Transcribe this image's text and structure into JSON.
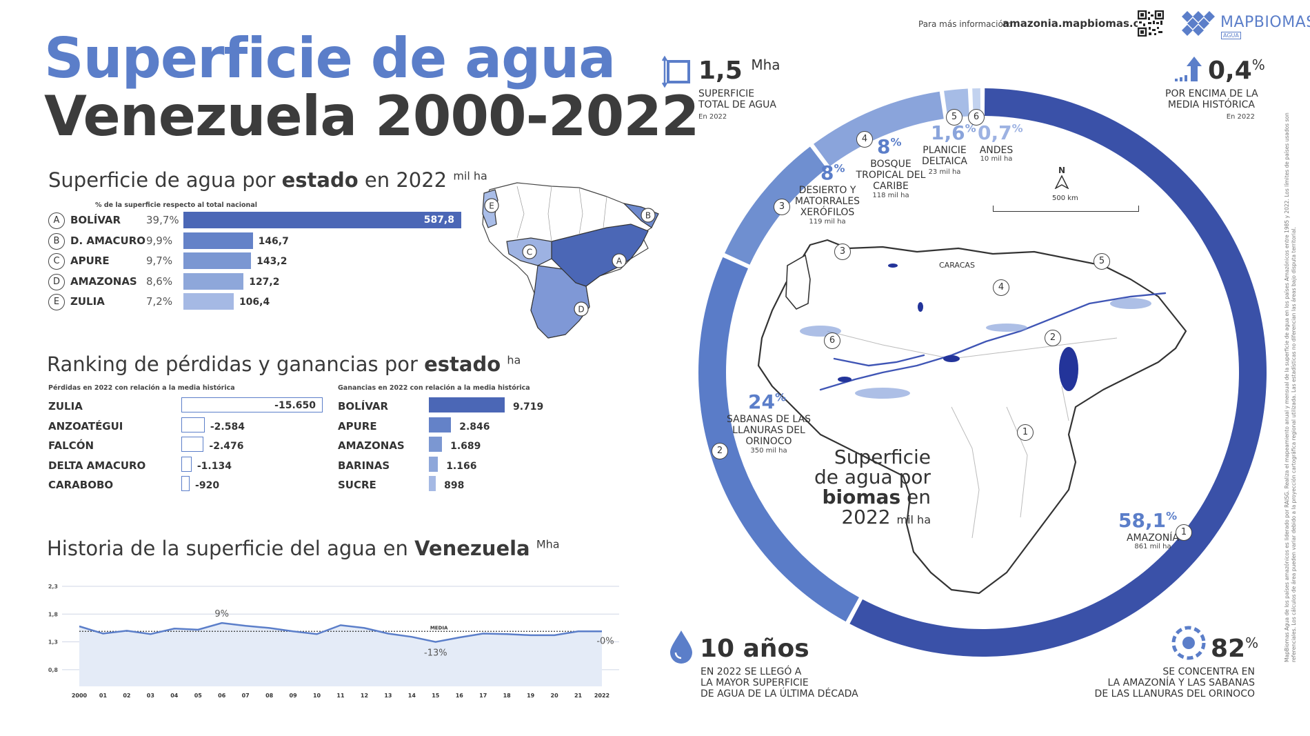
{
  "header": {
    "info_label": "Para más información:",
    "info_url": "amazonia.mapbiomas.org",
    "brand": "MAPBIOMAS",
    "brand_sub": "AGUA"
  },
  "title": {
    "line1": "Superficie de agua",
    "line2": "Venezuela 2000-2022"
  },
  "states": {
    "title_pre": "Superficie de agua por ",
    "title_bold": "estado",
    "title_post": " en 2022",
    "unit": "mil ha",
    "subtitle": "% de la superficie respecto al total nacional",
    "rows": [
      {
        "letter": "A",
        "name": "BOLÍVAR",
        "pct": "39,7%",
        "value": "587,8"
      },
      {
        "letter": "B",
        "name": "D. AMACURO",
        "pct": "9,9%",
        "value": "146,7"
      },
      {
        "letter": "C",
        "name": "APURE",
        "pct": "9,7%",
        "value": "143,2"
      },
      {
        "letter": "D",
        "name": "AMAZONAS",
        "pct": "8,6%",
        "value": "127,2"
      },
      {
        "letter": "E",
        "name": "ZULIA",
        "pct": "7,2%",
        "value": "106,4"
      }
    ]
  },
  "ranking": {
    "title_pre": "Ranking de pérdidas y ganancias por ",
    "title_bold": "estado",
    "unit": "ha",
    "loss_caption": "Pérdidas en 2022 con relación a la media histórica",
    "gain_caption": "Ganancias en 2022 con relación a la media histórica",
    "losses": [
      {
        "name": "ZULIA",
        "value": "-15.650"
      },
      {
        "name": "ANZOATÉGUI",
        "value": "-2.584"
      },
      {
        "name": "FALCÓN",
        "value": "-2.476"
      },
      {
        "name": "DELTA AMACURO",
        "value": "-1.134"
      },
      {
        "name": "CARABOBO",
        "value": "-920"
      }
    ],
    "gains": [
      {
        "name": "BOLÍVAR",
        "value": "9.719"
      },
      {
        "name": "APURE",
        "value": "2.846"
      },
      {
        "name": "AMAZONAS",
        "value": "1.689"
      },
      {
        "name": "BARINAS",
        "value": "1.166"
      },
      {
        "name": "SUCRE",
        "value": "898"
      }
    ]
  },
  "history": {
    "title_pre": "Historia de la superficie del agua en ",
    "title_bold": "Venezuela",
    "unit": "Mha",
    "media_label": "MEDIA",
    "annot_max": "9%",
    "annot_min": "-13%",
    "annot_last": "-0%"
  },
  "chart_data": [
    {
      "type": "bar",
      "title": "Superficie de agua por estado en 2022",
      "unit": "mil ha",
      "categories": [
        "BOLÍVAR",
        "D. AMACURO",
        "APURE",
        "AMAZONAS",
        "ZULIA"
      ],
      "values": [
        587.8,
        146.7,
        143.2,
        127.2,
        106.4
      ],
      "percent": [
        39.7,
        9.9,
        9.7,
        8.6,
        7.2
      ]
    },
    {
      "type": "bar",
      "title": "Ranking de pérdidas y ganancias por estado",
      "unit": "ha",
      "series": [
        {
          "name": "Pérdidas",
          "categories": [
            "ZULIA",
            "ANZOATÉGUI",
            "FALCÓN",
            "DELTA AMACURO",
            "CARABOBO"
          ],
          "values": [
            -15650,
            -2584,
            -2476,
            -1134,
            -920
          ]
        },
        {
          "name": "Ganancias",
          "categories": [
            "BOLÍVAR",
            "APURE",
            "AMAZONAS",
            "BARINAS",
            "SUCRE"
          ],
          "values": [
            9719,
            2846,
            1689,
            1166,
            898
          ]
        }
      ]
    },
    {
      "type": "area",
      "title": "Historia de la superficie del agua en Venezuela",
      "unit": "Mha",
      "x": [
        "2000",
        "01",
        "02",
        "03",
        "04",
        "05",
        "06",
        "07",
        "08",
        "09",
        "10",
        "11",
        "12",
        "13",
        "14",
        "15",
        "16",
        "17",
        "18",
        "19",
        "20",
        "21",
        "2022"
      ],
      "values": [
        1.58,
        1.45,
        1.5,
        1.44,
        1.54,
        1.52,
        1.64,
        1.59,
        1.55,
        1.49,
        1.44,
        1.6,
        1.55,
        1.45,
        1.39,
        1.3,
        1.38,
        1.45,
        1.44,
        1.42,
        1.42,
        1.49,
        1.49
      ],
      "mean": 1.49,
      "yticks": [
        "2,3",
        "1,8",
        "1,3",
        "0,8"
      ],
      "ylim": [
        0.5,
        2.3
      ]
    },
    {
      "type": "pie",
      "title": "Superficie de agua por biomas en 2022",
      "unit": "mil ha",
      "categories": [
        "AMAZONÍA",
        "SABANAS DE LAS LLANURAS DEL ORINOCO",
        "DESIERTO Y MATORRALES XERÓFILOS",
        "BOSQUE TROPICAL DEL CARIBE",
        "PLANICIE DELTAICA",
        "ANDES"
      ],
      "values": [
        861,
        350,
        119,
        118,
        23,
        10
      ],
      "percent": [
        58.1,
        24,
        8,
        8,
        1.6,
        0.7
      ],
      "colors": [
        "#3a51a8",
        "#5a7cc8",
        "#6f8fd0",
        "#8aa4db",
        "#a6bce6",
        "#c2d2ef"
      ]
    }
  ],
  "biomes": {
    "center_l1": "Superficie",
    "center_l2": "de agua por",
    "center_l3": "biomas",
    "center_l3b": " en",
    "center_l4": "2022",
    "center_unit": "mil ha",
    "items": [
      {
        "num": "1",
        "pct": "58,1",
        "name": "AMAZONÍA",
        "qty": "861 mil ha"
      },
      {
        "num": "2",
        "pct": "24",
        "name": "SABANAS DE LAS|LLANURAS DEL|ORINOCO",
        "qty": "350 mil ha"
      },
      {
        "num": "3",
        "pct": "8",
        "name": "DESIERTO Y|MATORRALES|XERÓFILOS",
        "qty": "119 mil ha"
      },
      {
        "num": "4",
        "pct": "8",
        "name": "BOSQUE|TROPICAL DEL|CARIBE",
        "qty": "118 mil ha"
      },
      {
        "num": "5",
        "pct": "1,6",
        "name": "PLANICIE|DELTAICA",
        "qty": "23 mil ha"
      },
      {
        "num": "6",
        "pct": "0,7",
        "name": "ANDES",
        "qty": "10 mil ha"
      }
    ]
  },
  "stats": {
    "total_value": "1,5",
    "total_unit": "Mha",
    "total_l1": "SUPERFICIE",
    "total_l2": "TOTAL DE AGUA",
    "total_note": "En 2022",
    "above_value": "0,4",
    "above_l1": "POR ENCIMA DE LA",
    "above_l2": "MEDIA HISTÓRICA",
    "above_note": "En 2022",
    "years_value": "10 años",
    "years_l1": "EN 2022 SE LLEGÓ A",
    "years_l2": "LA MAYOR SUPERFICIE",
    "years_l3": "DE AGUA DE LA ÚLTIMA DÉCADA",
    "conc_value": "82",
    "conc_l1": "SE CONCENTRA EN",
    "conc_l2": "LA AMAZONÍA Y LAS SABANAS",
    "conc_l3": "DE LAS LLANURAS DEL ORINOCO"
  },
  "map": {
    "north": "N",
    "scale": "500 km",
    "city": "CARACAS"
  },
  "side_note": "MapBiomas Agua de los países amazónicos es liderado por RAISG. Realiza el mapeamiento anual y mensual de la superficie de agua en los países Amazónicos entre 1985 y 2022. Los límites de países usados son referenciales. Los cálculos de área pueden variar debido a la proyección cartográfica regional utilizada. Las estadísticas no diferencian las áreas bajo disputa territorial."
}
